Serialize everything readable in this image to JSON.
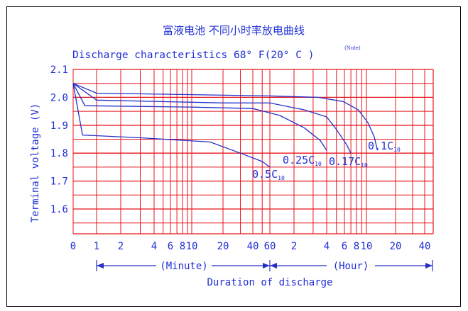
{
  "chart_data": {
    "type": "line",
    "title": "富液电池 不同小时率放电曲线",
    "subtitle": "Discharge characteristics 68° F(20° C )",
    "note": "(Note)",
    "ylabel": "Terminal voltage (V)",
    "xlabel": "Duration of discharge",
    "minute_label": "(Minute)",
    "hour_label": "(Hour)",
    "ylim": [
      1.5,
      2.1
    ],
    "y_ticks": [
      "2.1",
      "2.0",
      "1.9",
      "1.8",
      "1.7",
      "1.6"
    ],
    "x_ticks": [
      {
        "label": "0",
        "minutes": 0
      },
      {
        "label": "1",
        "minutes": 1
      },
      {
        "label": "2",
        "minutes": 2
      },
      {
        "label": "4",
        "minutes": 4
      },
      {
        "label": "6",
        "minutes": 6
      },
      {
        "label": "8",
        "minutes": 8
      },
      {
        "label": "10",
        "minutes": 10
      },
      {
        "label": "20",
        "minutes": 20
      },
      {
        "label": "40",
        "minutes": 40
      },
      {
        "label": "60",
        "minutes": 60
      },
      {
        "label": "2",
        "minutes": 120
      },
      {
        "label": "4",
        "minutes": 240
      },
      {
        "label": "6",
        "minutes": 360
      },
      {
        "label": "8",
        "minutes": 480
      },
      {
        "label": "10",
        "minutes": 600
      },
      {
        "label": "20",
        "minutes": 1200
      },
      {
        "label": "40",
        "minutes": 2400
      }
    ],
    "grid": true,
    "colors": {
      "grid": "#e8141c",
      "line": "#2430c8",
      "text": "#1f2fd6"
    },
    "series": [
      {
        "name": "0.5C10",
        "points": [
          [
            0,
            2.05
          ],
          [
            0.4,
            1.865
          ],
          [
            3,
            1.855
          ],
          [
            15,
            1.84
          ],
          [
            30,
            1.8
          ],
          [
            50,
            1.77
          ],
          [
            60,
            1.75
          ]
        ]
      },
      {
        "name": "0.25C10",
        "points": [
          [
            0,
            2.05
          ],
          [
            0.5,
            1.97
          ],
          [
            10,
            1.965
          ],
          [
            40,
            1.96
          ],
          [
            80,
            1.935
          ],
          [
            150,
            1.89
          ],
          [
            210,
            1.845
          ],
          [
            240,
            1.81
          ]
        ]
      },
      {
        "name": "0.17C10",
        "points": [
          [
            0,
            2.05
          ],
          [
            1,
            1.99
          ],
          [
            20,
            1.98
          ],
          [
            60,
            1.98
          ],
          [
            150,
            1.955
          ],
          [
            240,
            1.93
          ],
          [
            300,
            1.885
          ],
          [
            380,
            1.83
          ],
          [
            420,
            1.8
          ]
        ]
      },
      {
        "name": "0.1C10",
        "points": [
          [
            0,
            2.05
          ],
          [
            1,
            2.015
          ],
          [
            60,
            2.005
          ],
          [
            200,
            2.0
          ],
          [
            350,
            1.985
          ],
          [
            500,
            1.955
          ],
          [
            620,
            1.91
          ],
          [
            720,
            1.86
          ],
          [
            780,
            1.81
          ]
        ]
      }
    ]
  }
}
